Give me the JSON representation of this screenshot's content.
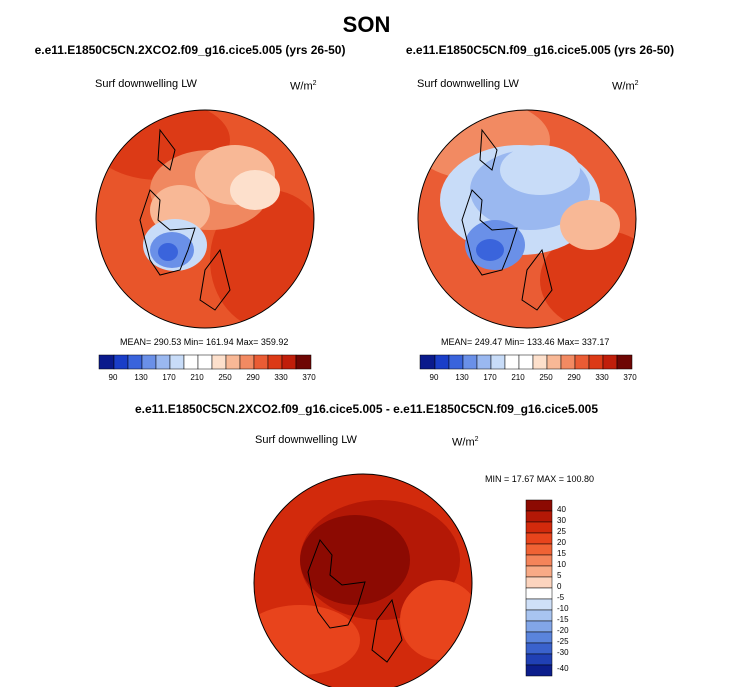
{
  "figure": {
    "season": "SON"
  },
  "panels": [
    {
      "title": "e.e11.E1850C5CN.2XCO2.f09_g16.cice5.005 (yrs 26-50)",
      "variable": "Surf downwelling LW",
      "units": "W/m",
      "units_exp": "2",
      "stats": "MEAN= 290.53  Min= 161.94  Max= 359.92"
    },
    {
      "title": "e.e11.E1850C5CN.f09_g16.cice5.005 (yrs 26-50)",
      "variable": "Surf downwelling LW",
      "units": "W/m",
      "units_exp": "2",
      "stats": "MEAN= 249.47  Min= 133.46  Max= 337.17"
    },
    {
      "title": "e.e11.E1850C5CN.2XCO2.f09_g16.cice5.005 - e.e11.E1850C5CN.f09_g16.cice5.005",
      "variable": "Surf downwelling LW",
      "units": "W/m",
      "units_exp": "2",
      "stats": "MIN =  17.67 MAX = 100.80"
    }
  ],
  "abs_colorbar": {
    "ticks": [
      "90",
      "130",
      "170",
      "210",
      "250",
      "290",
      "330",
      "370"
    ],
    "colors": [
      "#0a1a8c",
      "#1a3ec8",
      "#3a64dc",
      "#6a90e8",
      "#9ab8f0",
      "#c8dcf8",
      "#ffffff",
      "#fde0cc",
      "#f8b896",
      "#f28a62",
      "#ea5c34",
      "#dc3a16",
      "#c01e0a",
      "#901008",
      "#6e0604"
    ]
  },
  "diff_colorbar": {
    "ticks": [
      "40",
      "30",
      "25",
      "20",
      "15",
      "10",
      "5",
      "0",
      "-5",
      "-10",
      "-15",
      "-20",
      "-25",
      "-30",
      "-40"
    ],
    "colors": [
      "#8c0a02",
      "#b41806",
      "#d22a0c",
      "#e8441c",
      "#f06234",
      "#f4845a",
      "#f8aa86",
      "#fcd4be",
      "#ffffff",
      "#cfe0f8",
      "#a8c4f0",
      "#82a6e8",
      "#5a84dc",
      "#3a62cc",
      "#2040b4",
      "#0c1e8c"
    ]
  }
}
